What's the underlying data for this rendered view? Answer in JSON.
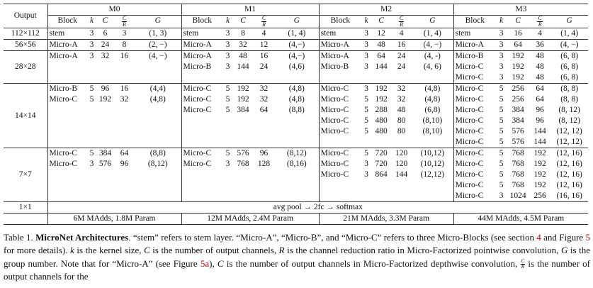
{
  "table": {
    "output_header": "Output",
    "models": [
      "M0",
      "M1",
      "M2",
      "M3"
    ],
    "sub_headers": {
      "block": "Block",
      "k": "k",
      "C": "C",
      "frac_num": "C",
      "frac_den": "R",
      "G": "G"
    },
    "sections": [
      {
        "output": "112×112",
        "cells": [
          {
            "block": [
              "stem"
            ],
            "k": [
              "3"
            ],
            "C": [
              "6"
            ],
            "CR": [
              "3"
            ],
            "G": [
              "(1, 3)"
            ]
          },
          {
            "block": [
              "stem"
            ],
            "k": [
              "3"
            ],
            "C": [
              "8"
            ],
            "CR": [
              "4"
            ],
            "G": [
              "(1, 4)"
            ]
          },
          {
            "block": [
              "stem"
            ],
            "k": [
              "3"
            ],
            "C": [
              "12"
            ],
            "CR": [
              "4"
            ],
            "G": [
              "(1, 4)"
            ]
          },
          {
            "block": [
              "stem"
            ],
            "k": [
              "3"
            ],
            "C": [
              "16"
            ],
            "CR": [
              "4"
            ],
            "G": [
              "(1, 4)"
            ]
          }
        ]
      },
      {
        "output": "56×56",
        "cells": [
          {
            "block": [
              "Micro-A"
            ],
            "k": [
              "3"
            ],
            "C": [
              "24"
            ],
            "CR": [
              "8"
            ],
            "G": [
              "(2, −)"
            ]
          },
          {
            "block": [
              "Micro-A"
            ],
            "k": [
              "3"
            ],
            "C": [
              "32"
            ],
            "CR": [
              "12"
            ],
            "G": [
              "(4,−)"
            ]
          },
          {
            "block": [
              "Micro-A"
            ],
            "k": [
              "3"
            ],
            "C": [
              "48"
            ],
            "CR": [
              "16"
            ],
            "G": [
              "(4, −)"
            ]
          },
          {
            "block": [
              "Micro-A"
            ],
            "k": [
              "3"
            ],
            "C": [
              "64"
            ],
            "CR": [
              "36"
            ],
            "G": [
              "(4, −)"
            ]
          }
        ]
      },
      {
        "output": "28×28",
        "cells": [
          {
            "block": [
              "Micro-A"
            ],
            "k": [
              "3"
            ],
            "C": [
              "32"
            ],
            "CR": [
              "16"
            ],
            "G": [
              "(4, −)"
            ]
          },
          {
            "block": [
              "Micro-A",
              "Micro-B"
            ],
            "k": [
              "3",
              "3"
            ],
            "C": [
              "48",
              "144"
            ],
            "CR": [
              "16",
              "24"
            ],
            "G": [
              "(4,−)",
              "(4,6)"
            ]
          },
          {
            "block": [
              "Micro-A",
              "Micro-B"
            ],
            "k": [
              "3",
              "3"
            ],
            "C": [
              "64",
              "144"
            ],
            "CR": [
              "24",
              "24"
            ],
            "G": [
              "(4, -)",
              "(4, 6)"
            ]
          },
          {
            "block": [
              "Micro-B",
              "Micro-C",
              "Micro-C"
            ],
            "k": [
              "3",
              "3",
              "3"
            ],
            "C": [
              "192",
              "192",
              "192"
            ],
            "CR": [
              "48",
              "48",
              "48"
            ],
            "G": [
              "(6, 8)",
              "(6, 8)",
              "(6, 8)"
            ]
          }
        ]
      },
      {
        "output": "14×14",
        "cells": [
          {
            "block": [
              "Micro-B",
              "Micro-C"
            ],
            "k": [
              "5",
              "5"
            ],
            "C": [
              "96",
              "192"
            ],
            "CR": [
              "16",
              "32"
            ],
            "G": [
              "(4,4)",
              "(4,8)"
            ]
          },
          {
            "block": [
              "Micro-C",
              "Micro-C",
              "Micro-C"
            ],
            "k": [
              "5",
              "5",
              "5"
            ],
            "C": [
              "192",
              "192",
              "384"
            ],
            "CR": [
              "32",
              "32",
              "64"
            ],
            "G": [
              "(4,8)",
              "(4,8)",
              "(8,8)"
            ]
          },
          {
            "block": [
              "Micro-C",
              "Micro-C",
              "Micro-C",
              "Micro-C",
              "Micro-C"
            ],
            "k": [
              "3",
              "5",
              "5",
              "5",
              "5"
            ],
            "C": [
              "192",
              "192",
              "288",
              "480",
              "480"
            ],
            "CR": [
              "32",
              "32",
              "48",
              "80",
              "80"
            ],
            "G": [
              "(4,8)",
              "(4,8)",
              "(6,8)",
              "(8,10)",
              "(8,10)"
            ]
          },
          {
            "block": [
              "Micro-C",
              "Micro-C",
              "Micro-C",
              "Micro-C",
              "Micro-C",
              "Micro-C"
            ],
            "k": [
              "5",
              "5",
              "5",
              "5",
              "5",
              "5"
            ],
            "C": [
              "256",
              "256",
              "384",
              "384",
              "576",
              "576"
            ],
            "CR": [
              "64",
              "64",
              "96",
              "96",
              "144",
              "144"
            ],
            "G": [
              "(8, 8)",
              "(8, 8)",
              "(8, 12)",
              "(8, 12)",
              "(12, 12)",
              "(12, 12)"
            ]
          }
        ]
      },
      {
        "output": "7×7",
        "cells": [
          {
            "block": [
              "Micro-C",
              "Micro-C"
            ],
            "k": [
              "5",
              "3"
            ],
            "C": [
              "384",
              "576"
            ],
            "CR": [
              "64",
              "96"
            ],
            "G": [
              "(8,8)",
              "(8,12)"
            ]
          },
          {
            "block": [
              "Micro-C",
              "Micro-C"
            ],
            "k": [
              "5",
              "3"
            ],
            "C": [
              "576",
              "768"
            ],
            "CR": [
              "96",
              "128"
            ],
            "G": [
              "(8,12)",
              "(8,16)"
            ]
          },
          {
            "block": [
              "Micro-C",
              "Micro-C",
              "Micro-C"
            ],
            "k": [
              "5",
              "3",
              "3"
            ],
            "C": [
              "720",
              "720",
              "864"
            ],
            "CR": [
              "120",
              "120",
              "144"
            ],
            "G": [
              "(10,12)",
              "(10,12)",
              "(12,12)"
            ]
          },
          {
            "block": [
              "Micro-C",
              "Micro-C",
              "Micro-C",
              "Micro-C",
              "Micro-C"
            ],
            "k": [
              "5",
              "5",
              "5",
              "5",
              "3"
            ],
            "C": [
              "768",
              "768",
              "768",
              "768",
              "1024"
            ],
            "CR": [
              "192",
              "192",
              "192",
              "192",
              "256"
            ],
            "G": [
              "(12, 16)",
              "(12, 16)",
              "(12, 16)",
              "(12, 16)",
              "(16, 16)"
            ]
          }
        ]
      }
    ],
    "final_output": "1×1",
    "final_op": "avg pool → 2fc → softmax",
    "costs": [
      "6M MAdds, 1.8M Param",
      "12M MAdds, 2.4M Param",
      "21M MAdds, 3.3M Param",
      "44M MAdds, 4.5M Param"
    ]
  },
  "caption": {
    "label": "Table 1.",
    "title": "MicroNet Architectures",
    "t1": ". “stem” refers to stem layer. “Micro-A”, “Micro-B”, and “Micro-C” refers to three Micro-Blocks (see section ",
    "ref_section": "4",
    "t2": " and Figure ",
    "ref_figure": "5",
    "t3": " for more details). ",
    "k": "k",
    "t4": " is the kernel size, ",
    "C": "C",
    "t5": " is the number of output channels, ",
    "R": "R",
    "t6": " is the channel reduction ratio in Micro-Factorized pointwise convolution, ",
    "G": "G",
    "t7": " is the group number. Note that for “Micro-A” (see Figure ",
    "ref_figure_a": "5a",
    "t8": "), ",
    "C2": "C",
    "t9": " is the number of output channels in Micro-Factorized depthwise convolution, ",
    "frac_num": "C",
    "frac_den": "R",
    "t10": " is the number of output channels for the"
  }
}
